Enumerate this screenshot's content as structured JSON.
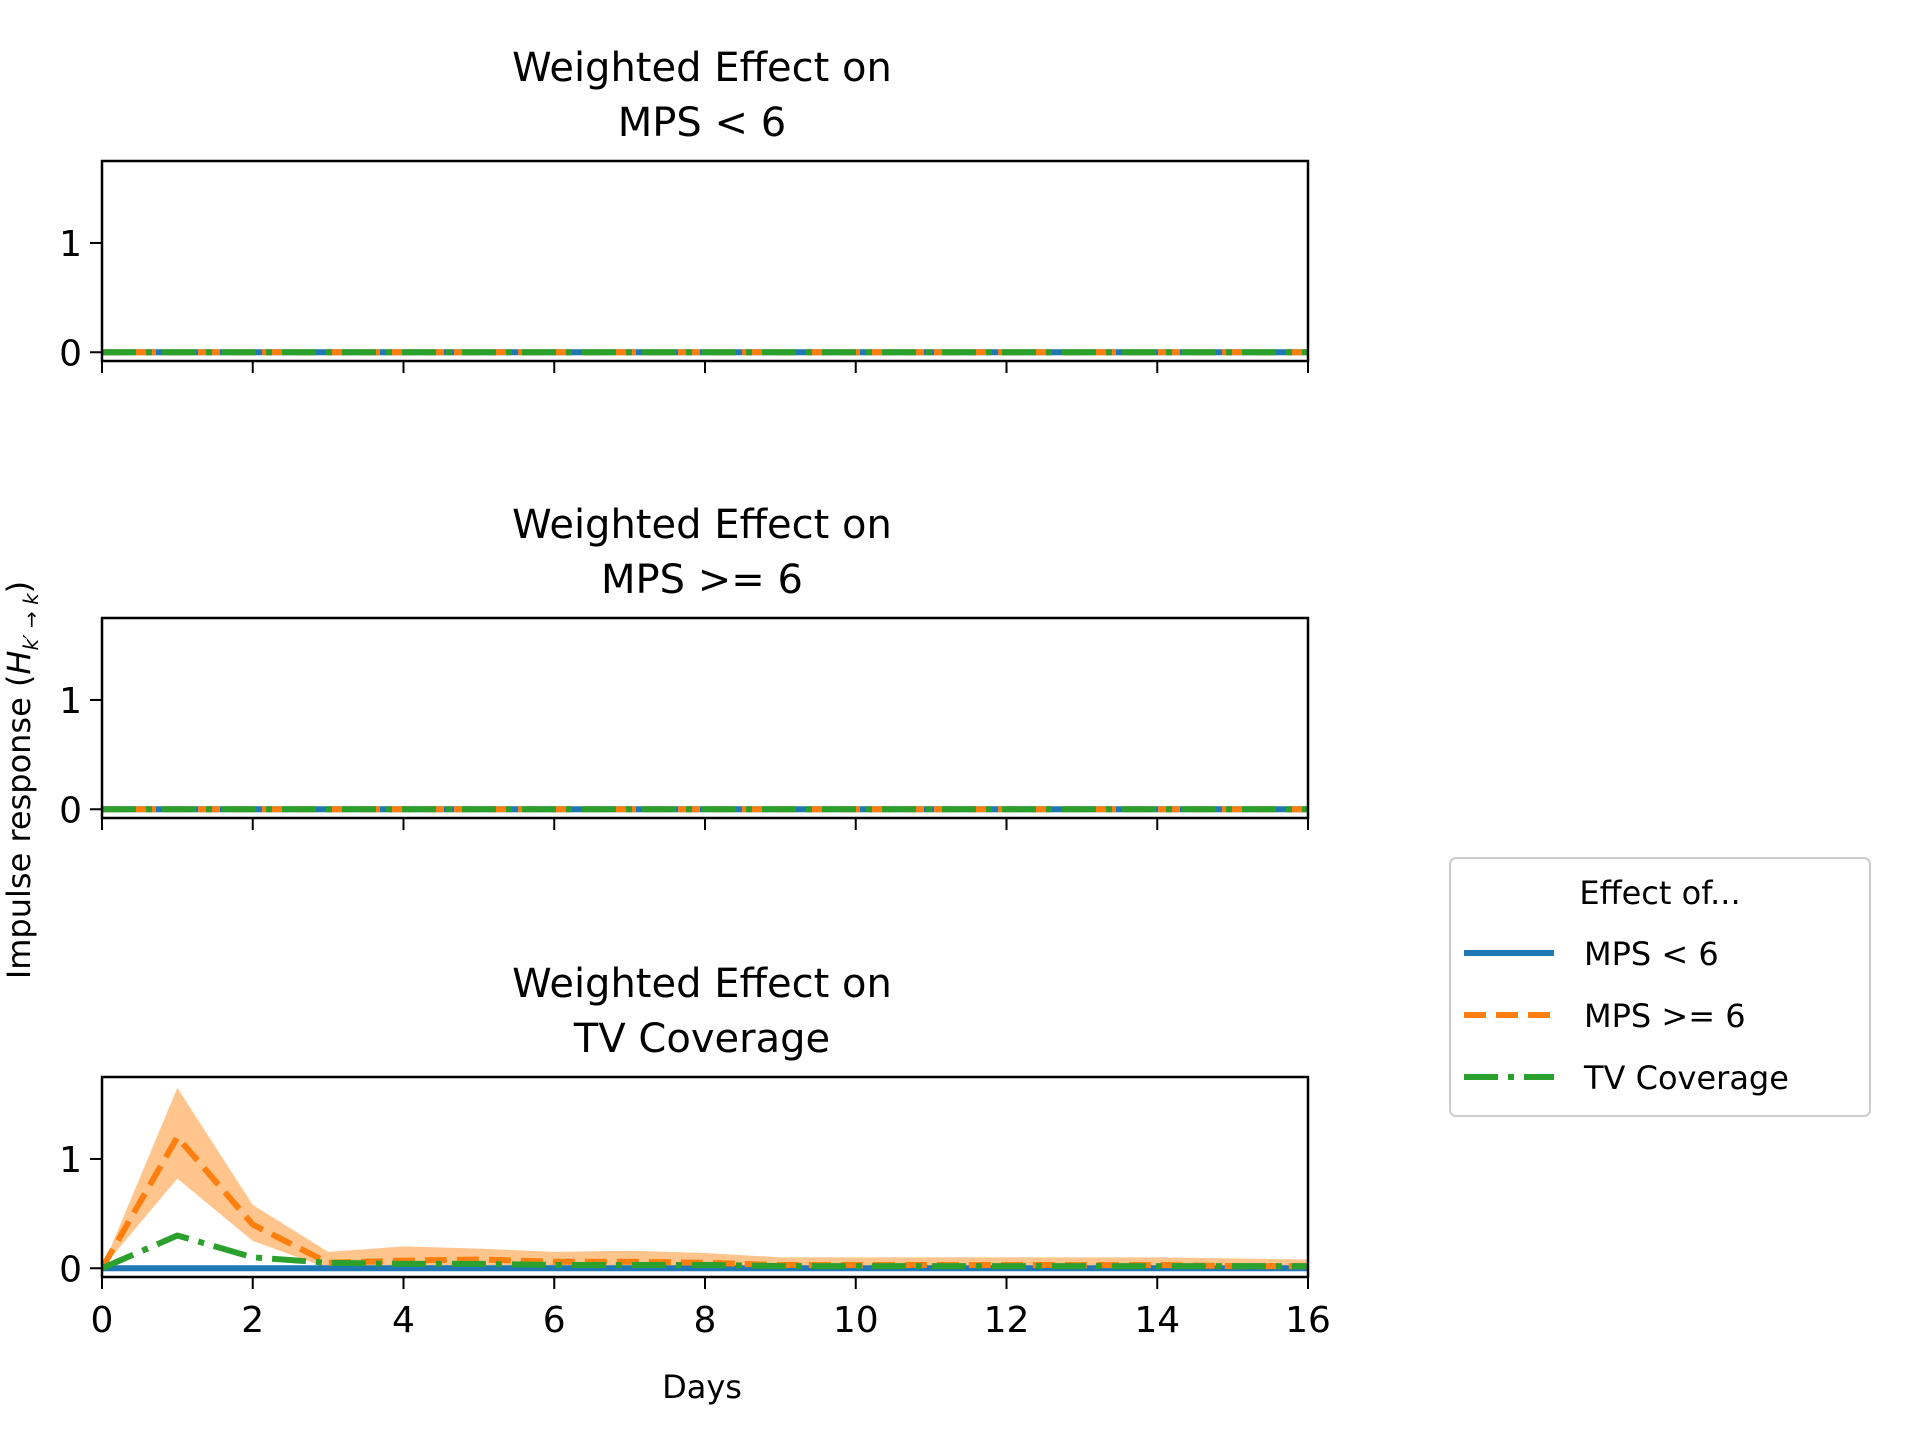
{
  "figure": {
    "ylabel": "Impulse response (",
    "ylabel_math": "H",
    "ylabel_sub": "k′ → k",
    "ylabel_close": ")",
    "xlabel": "Days"
  },
  "colors": {
    "mps_lt6": "#1f77b4",
    "mps_ge6": "#ff7f0e",
    "tv": "#2ca02c",
    "band": "#ffbb78"
  },
  "legend": {
    "title": "Effect of...",
    "entries": [
      {
        "label": "MPS < 6",
        "series": "mps_lt6",
        "style": "solid"
      },
      {
        "label": "MPS >= 6",
        "series": "mps_ge6",
        "style": "dashed"
      },
      {
        "label": "TV Coverage",
        "series": "tv",
        "style": "dashdot"
      }
    ]
  },
  "chart_data": [
    {
      "type": "line",
      "title_line1": "Weighted Effect on",
      "title_line2": "MPS < 6",
      "xlim": [
        0,
        16
      ],
      "ylim": [
        -0.08,
        1.75
      ],
      "x_ticks": [
        0,
        2,
        4,
        6,
        8,
        10,
        12,
        14,
        16
      ],
      "y_ticks": [
        0,
        1
      ],
      "show_xticklabels": false,
      "x": [
        0,
        1,
        2,
        3,
        4,
        5,
        6,
        7,
        8,
        9,
        10,
        11,
        12,
        13,
        14,
        15,
        16
      ],
      "series": [
        {
          "name": "MPS < 6",
          "key": "mps_lt6",
          "values": [
            0,
            0,
            0,
            0,
            0,
            0,
            0,
            0,
            0,
            0,
            0,
            0,
            0,
            0,
            0,
            0,
            0
          ]
        },
        {
          "name": "MPS >= 6",
          "key": "mps_ge6",
          "values": [
            0,
            0,
            0,
            0,
            0,
            0,
            0,
            0,
            0,
            0,
            0,
            0,
            0,
            0,
            0,
            0,
            0
          ]
        },
        {
          "name": "TV Coverage",
          "key": "tv",
          "values": [
            0,
            0,
            0,
            0,
            0,
            0,
            0,
            0,
            0,
            0,
            0,
            0,
            0,
            0,
            0,
            0,
            0
          ]
        }
      ]
    },
    {
      "type": "line",
      "title_line1": "Weighted Effect on",
      "title_line2": "MPS >= 6",
      "xlim": [
        0,
        16
      ],
      "ylim": [
        -0.08,
        1.75
      ],
      "x_ticks": [
        0,
        2,
        4,
        6,
        8,
        10,
        12,
        14,
        16
      ],
      "y_ticks": [
        0,
        1
      ],
      "show_xticklabels": false,
      "x": [
        0,
        1,
        2,
        3,
        4,
        5,
        6,
        7,
        8,
        9,
        10,
        11,
        12,
        13,
        14,
        15,
        16
      ],
      "series": [
        {
          "name": "MPS < 6",
          "key": "mps_lt6",
          "values": [
            0,
            0,
            0,
            0,
            0,
            0,
            0,
            0,
            0,
            0,
            0,
            0,
            0,
            0,
            0,
            0,
            0
          ]
        },
        {
          "name": "MPS >= 6",
          "key": "mps_ge6",
          "values": [
            0,
            0,
            0,
            0,
            0,
            0,
            0,
            0,
            0,
            0,
            0,
            0,
            0,
            0,
            0,
            0,
            0
          ]
        },
        {
          "name": "TV Coverage",
          "key": "tv",
          "values": [
            0,
            0,
            0,
            0,
            0,
            0,
            0,
            0,
            0,
            0,
            0,
            0,
            0,
            0,
            0,
            0,
            0
          ]
        }
      ]
    },
    {
      "type": "line",
      "title_line1": "Weighted Effect on",
      "title_line2": "TV Coverage",
      "xlim": [
        0,
        16
      ],
      "ylim": [
        -0.08,
        1.75
      ],
      "x_ticks": [
        0,
        2,
        4,
        6,
        8,
        10,
        12,
        14,
        16
      ],
      "y_ticks": [
        0,
        1
      ],
      "show_xticklabels": true,
      "x": [
        0,
        1,
        2,
        3,
        4,
        5,
        6,
        7,
        8,
        9,
        10,
        11,
        12,
        13,
        14,
        15,
        16
      ],
      "series": [
        {
          "name": "MPS < 6",
          "key": "mps_lt6",
          "values": [
            0,
            0,
            0,
            0,
            0,
            0,
            0,
            0,
            0,
            0,
            0,
            0,
            0,
            0,
            0,
            0,
            0
          ]
        },
        {
          "name": "MPS >= 6",
          "key": "mps_ge6",
          "values": [
            0,
            1.2,
            0.4,
            0.05,
            0.07,
            0.08,
            0.06,
            0.06,
            0.05,
            0.03,
            0.03,
            0.03,
            0.03,
            0.03,
            0.03,
            0.02,
            0.02
          ],
          "band_lower": [
            0,
            0.82,
            0.25,
            0.0,
            0.0,
            0.0,
            0.0,
            0.0,
            0.0,
            0.0,
            0.0,
            0.0,
            0.0,
            0.0,
            0.0,
            0.0,
            0.0
          ],
          "band_upper": [
            0,
            1.65,
            0.58,
            0.15,
            0.2,
            0.18,
            0.15,
            0.16,
            0.14,
            0.1,
            0.1,
            0.1,
            0.1,
            0.1,
            0.1,
            0.09,
            0.08
          ]
        },
        {
          "name": "TV Coverage",
          "key": "tv",
          "values": [
            0,
            0.3,
            0.1,
            0.05,
            0.04,
            0.04,
            0.03,
            0.03,
            0.03,
            0.02,
            0.02,
            0.02,
            0.02,
            0.02,
            0.02,
            0.02,
            0.02
          ]
        }
      ]
    }
  ]
}
